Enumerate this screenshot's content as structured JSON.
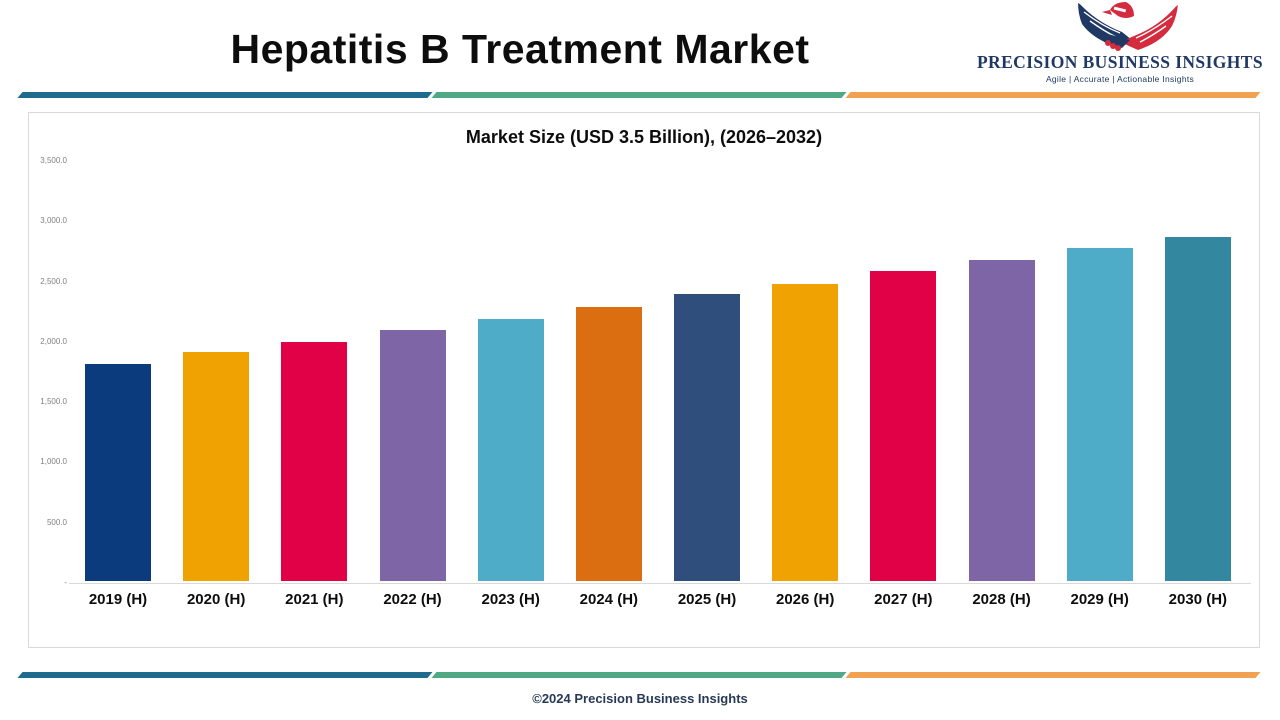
{
  "header": {
    "title": "Hepatitis B Treatment Market",
    "logo": {
      "name": "PRECISION BUSINESS INSIGHTS",
      "tagline": "Agile | Accurate | Actionable Insights",
      "eagle_colors": {
        "navy": "#1f3864",
        "red": "#d52b3e"
      }
    }
  },
  "divider_colors": {
    "blue": "#1f6b8e",
    "green": "#50a885",
    "orange": "#f0a251"
  },
  "chart_data": {
    "type": "bar",
    "title": "Market Size (USD 3.5 Billion), (2026–2032)",
    "categories": [
      "2019 (H)",
      "2020 (H)",
      "2021 (H)",
      "2022 (H)",
      "2023 (H)",
      "2024 (H)",
      "2025 (H)",
      "2026 (H)",
      "2027 (H)",
      "2028 (H)",
      "2029 (H)",
      "2030 (H)"
    ],
    "values": [
      1800,
      1900,
      1980,
      2080,
      2170,
      2270,
      2380,
      2460,
      2570,
      2660,
      2760,
      2850
    ],
    "bar_colors": [
      "#0b3b7c",
      "#f0a202",
      "#e00147",
      "#7e66a6",
      "#4eacc8",
      "#dc6e12",
      "#2f4e7b",
      "#f0a202",
      "#e00147",
      "#7e66a6",
      "#4eacc8",
      "#33879e"
    ],
    "xlabel": "",
    "ylabel": "",
    "ylim": [
      0,
      3500
    ],
    "y_ticks": [
      "3,500.0",
      "3,000.0",
      "2,500.0",
      "2,000.0",
      "1,500.0",
      "1,000.0",
      "500.0",
      "-"
    ],
    "y_tick_values": [
      3500,
      3000,
      2500,
      2000,
      1500,
      1000,
      500,
      0
    ],
    "grid": false,
    "legend": "none"
  },
  "footer": {
    "copyright": "©2024 Precision Business Insights"
  }
}
